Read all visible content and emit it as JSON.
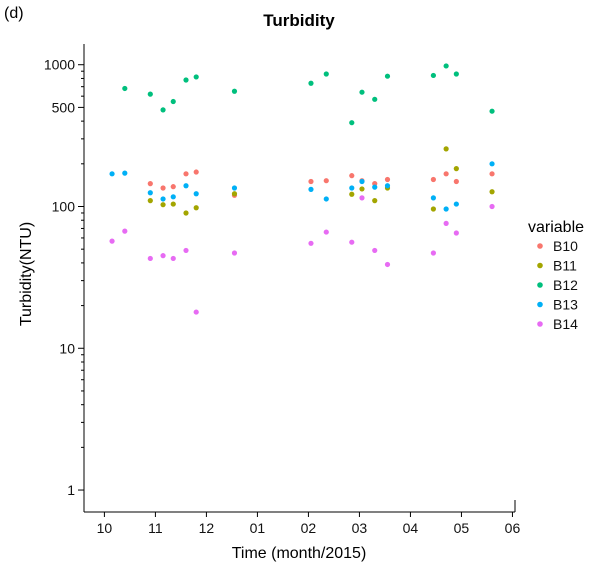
{
  "panel_label": "(d)",
  "chart_data": {
    "type": "scatter",
    "title": "Turbidity",
    "xlabel": "Time (month/2015)",
    "ylabel": "Turbidity(NTU)",
    "y_scale": "log10",
    "ylim": [
      0.7,
      1400
    ],
    "x_unit": "months since 2014-10 (10 = Oct 2014)",
    "xlim": [
      9.6,
      18.05
    ],
    "x_ticks": [
      10,
      11,
      12,
      13,
      14,
      15,
      16,
      17,
      18
    ],
    "x_tick_labels": [
      "10",
      "11",
      "12",
      "01",
      "02",
      "03",
      "04",
      "05",
      "06"
    ],
    "y_ticks": [
      1,
      10,
      100,
      500,
      1000
    ],
    "y_tick_labels": [
      "1",
      "10",
      "100",
      "500",
      "1000"
    ],
    "legend_title": "variable",
    "series": [
      {
        "name": "B10",
        "color": "#F8766D",
        "x": [
          10.9,
          11.15,
          11.35,
          11.6,
          11.8,
          12.55,
          14.05,
          14.35,
          14.85,
          15.05,
          15.3,
          15.55,
          16.45,
          16.7,
          16.9,
          17.6
        ],
        "y": [
          145,
          135,
          138,
          170,
          175,
          120,
          150,
          152,
          165,
          152,
          145,
          155,
          155,
          170,
          150,
          170
        ]
      },
      {
        "name": "B11",
        "color": "#A3A500",
        "x": [
          10.9,
          11.15,
          11.35,
          11.6,
          11.8,
          12.55,
          14.85,
          15.05,
          15.3,
          15.55,
          16.45,
          16.7,
          16.9,
          17.6
        ],
        "y": [
          110,
          103,
          104,
          90,
          98,
          123,
          122,
          133,
          110,
          135,
          96,
          255,
          185,
          127
        ]
      },
      {
        "name": "B12",
        "color": "#00BF7D",
        "x": [
          10.4,
          10.9,
          11.15,
          11.35,
          11.6,
          11.8,
          12.55,
          14.05,
          14.35,
          14.85,
          15.05,
          15.3,
          15.55,
          16.45,
          16.7,
          16.9,
          17.6
        ],
        "y": [
          680,
          620,
          480,
          550,
          780,
          820,
          650,
          740,
          860,
          390,
          640,
          570,
          830,
          840,
          980,
          860,
          470
        ]
      },
      {
        "name": "B13",
        "color": "#00B0F6",
        "x": [
          10.15,
          10.4,
          10.9,
          11.15,
          11.35,
          11.6,
          11.8,
          12.55,
          14.05,
          14.35,
          14.85,
          15.05,
          15.3,
          15.55,
          16.45,
          16.7,
          16.9,
          17.6
        ],
        "y": [
          170,
          172,
          125,
          113,
          117,
          140,
          123,
          135,
          132,
          113,
          135,
          150,
          137,
          140,
          115,
          96,
          104,
          200
        ]
      },
      {
        "name": "B14",
        "color": "#E76BF3",
        "x": [
          10.15,
          10.4,
          10.9,
          11.15,
          11.35,
          11.6,
          11.8,
          12.55,
          14.05,
          14.35,
          14.85,
          15.05,
          15.3,
          15.55,
          16.45,
          16.7,
          16.9,
          17.6
        ],
        "y": [
          57,
          67,
          43,
          45,
          43,
          49,
          18,
          47,
          55,
          66,
          56,
          115,
          49,
          39,
          47,
          76,
          65,
          100
        ]
      }
    ]
  }
}
